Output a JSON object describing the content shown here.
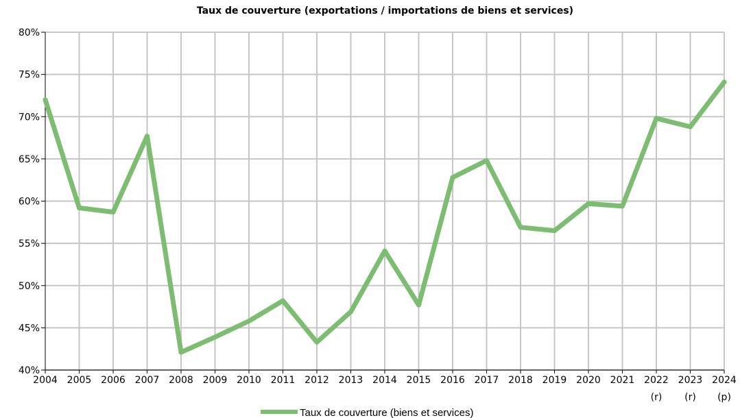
{
  "chart_data": {
    "type": "line",
    "title": "Taux de couverture (exportations / importations de biens et services)",
    "xlabel": "",
    "ylabel": "",
    "categories": [
      "2004",
      "2005",
      "2006",
      "2007",
      "2008",
      "2009",
      "2010",
      "2011",
      "2012",
      "2013",
      "2014",
      "2015",
      "2016",
      "2017",
      "2018",
      "2019",
      "2020",
      "2021",
      "2022",
      "2023",
      "2024"
    ],
    "category_notes": [
      "",
      "",
      "",
      "",
      "",
      "",
      "",
      "",
      "",
      "",
      "",
      "",
      "",
      "",
      "",
      "",
      "",
      "",
      "(r)",
      "(r)",
      "(p)"
    ],
    "ylim": [
      40,
      80
    ],
    "y_ticks": [
      40,
      45,
      50,
      55,
      60,
      65,
      70,
      75,
      80
    ],
    "y_tick_labels": [
      "40%",
      "45%",
      "50%",
      "55%",
      "60%",
      "65%",
      "70%",
      "75%",
      "80%"
    ],
    "grid": true,
    "legend_position": "bottom",
    "series": [
      {
        "name": "Taux de couverture (biens et services)",
        "color": "#7dbd71",
        "values": [
          72.0,
          59.2,
          58.7,
          67.7,
          42.1,
          43.9,
          45.8,
          48.2,
          43.3,
          46.9,
          54.1,
          47.7,
          62.8,
          64.8,
          56.9,
          56.5,
          59.7,
          59.4,
          69.8,
          68.8,
          74.1
        ]
      }
    ]
  }
}
